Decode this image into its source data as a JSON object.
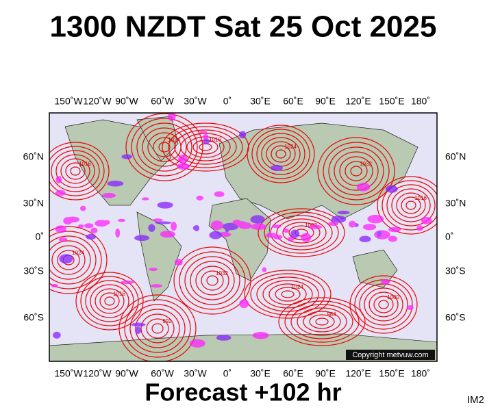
{
  "header": {
    "title": "1300 NZDT Sat 25 Oct 2025"
  },
  "map": {
    "lon_labels": [
      "150˚W",
      "120˚W",
      "90˚W",
      "60˚W",
      "30˚W",
      "0˚",
      "30˚E",
      "60˚E",
      "90˚E",
      "120˚E",
      "150˚E",
      "180˚"
    ],
    "lat_labels": [
      "60˚N",
      "30˚N",
      "0˚",
      "30˚S",
      "60˚S"
    ],
    "isobar_labels": [
      "1016",
      "1024",
      "1016",
      "1024",
      "1032",
      "1008",
      "1016",
      "1032",
      "1024",
      "1000",
      "992",
      "984",
      "1016",
      "1024"
    ],
    "copyright": "Copyright metvuw.com"
  },
  "footer": {
    "subtitle": "Forecast +102 hr",
    "code": "IM2"
  }
}
